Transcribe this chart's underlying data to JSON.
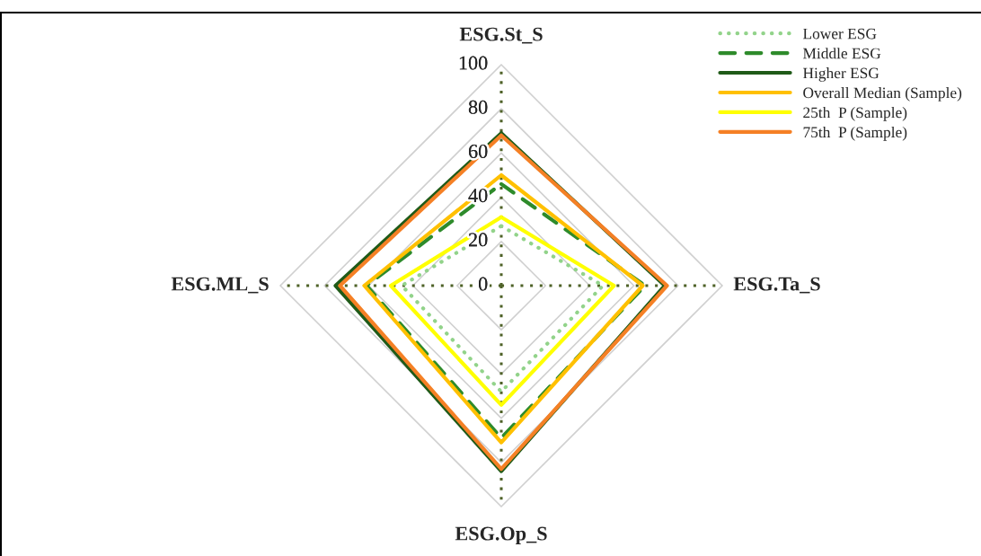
{
  "chart_data": {
    "type": "radar",
    "categories": [
      "ESG.St_S",
      "ESG.Ta_S",
      "ESG.Op_S",
      "ESG.ML_S"
    ],
    "ylim": [
      0,
      100
    ],
    "yticks": [
      0,
      20,
      40,
      60,
      80,
      100
    ],
    "grid": true,
    "legend": "top right",
    "series": [
      {
        "name": "Lower ESG",
        "color": "#92d38a",
        "line_style": "dotted",
        "values": [
          27,
          46,
          48,
          45
        ]
      },
      {
        "name": "Middle ESG",
        "color": "#2e8b2b",
        "line_style": "dashed",
        "values": [
          46,
          65,
          69,
          61
        ]
      },
      {
        "name": "Higher ESG",
        "color": "#1f5a18",
        "line_style": "solid",
        "values": [
          69,
          74,
          84,
          75
        ]
      },
      {
        "name": "Overall Median (Sample)",
        "color": "#ffc000",
        "line_style": "solid",
        "values": [
          50,
          64,
          71,
          62
        ]
      },
      {
        "name": "25th  P (Sample)",
        "color": "#ffff00",
        "line_style": "solid",
        "values": [
          31,
          51,
          54,
          50
        ]
      },
      {
        "name": "75th  P (Sample)",
        "color": "#f58025",
        "line_style": "solid",
        "values": [
          68,
          75,
          83,
          73
        ]
      }
    ]
  }
}
